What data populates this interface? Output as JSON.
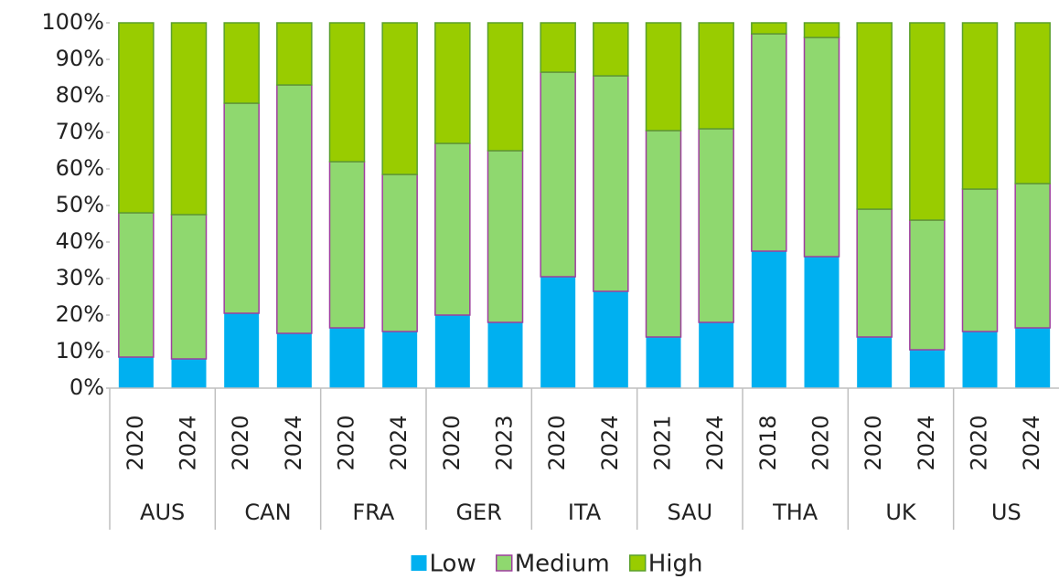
{
  "chart_data": {
    "type": "stacked_bar",
    "groups": [
      {
        "name": "AUS",
        "categories": [
          "2020",
          "2024"
        ]
      },
      {
        "name": "CAN",
        "categories": [
          "2020",
          "2024"
        ]
      },
      {
        "name": "FRA",
        "categories": [
          "2020",
          "2024"
        ]
      },
      {
        "name": "GER",
        "categories": [
          "2020",
          "2023"
        ]
      },
      {
        "name": "ITA",
        "categories": [
          "2020",
          "2024"
        ]
      },
      {
        "name": "SAU",
        "categories": [
          "2021",
          "2024"
        ]
      },
      {
        "name": "THA",
        "categories": [
          "2018",
          "2020"
        ]
      },
      {
        "name": "UK",
        "categories": [
          "2020",
          "2024"
        ]
      },
      {
        "name": "US",
        "categories": [
          "2020",
          "2024"
        ]
      }
    ],
    "series": [
      {
        "name": "Low",
        "color": "#00b0f0",
        "stroke": "none",
        "values": [
          8.5,
          8,
          20.5,
          15,
          16.5,
          15.5,
          20,
          18,
          30.5,
          26.5,
          14,
          18,
          37.5,
          36,
          14,
          10.5,
          15.5,
          16.5
        ]
      },
      {
        "name": "Medium",
        "color": "#8fd86f",
        "stroke": "#9e3f9e",
        "values": [
          39.5,
          39.5,
          57.5,
          68,
          45.5,
          43,
          47,
          47,
          56,
          59,
          56.5,
          53,
          59.5,
          60,
          35,
          35.5,
          39,
          39.5
        ]
      },
      {
        "name": "High",
        "color": "#99cc00",
        "stroke": "#5aa02c",
        "values": [
          52,
          52.5,
          22,
          17,
          38,
          41.5,
          33,
          35,
          13.5,
          14.5,
          29.5,
          29,
          3,
          4,
          51,
          54,
          45.5,
          44
        ]
      }
    ],
    "ylim": [
      0,
      100
    ],
    "yticks": [
      {
        "value": 0,
        "label": "0%"
      },
      {
        "value": 10,
        "label": "10%"
      },
      {
        "value": 20,
        "label": "20%"
      },
      {
        "value": 30,
        "label": "30%"
      },
      {
        "value": 40,
        "label": "40%"
      },
      {
        "value": 50,
        "label": "50%"
      },
      {
        "value": 60,
        "label": "60%"
      },
      {
        "value": 70,
        "label": "70%"
      },
      {
        "value": 80,
        "label": "80%"
      },
      {
        "value": 90,
        "label": "90%"
      },
      {
        "value": 100,
        "label": "100%"
      }
    ],
    "legend": "bottom"
  }
}
